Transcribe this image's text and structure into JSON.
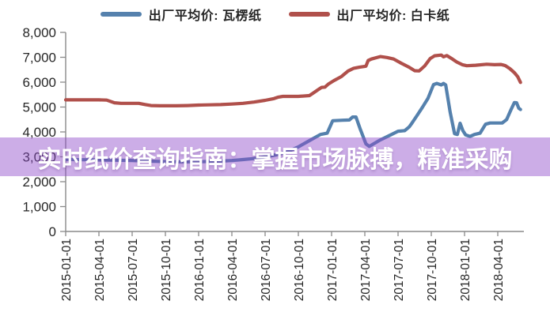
{
  "watermark": {
    "text": "实时纸价查询指南：掌握市场脉搏，精准采购",
    "band_color": "rgba(142,73,201,0.45)",
    "text_color": "#ffffff"
  },
  "chart_data": {
    "type": "line",
    "title": "",
    "xlabel": "",
    "ylabel": "",
    "grid": false,
    "legend_position": "top",
    "x_unit": "months since 2015-01",
    "ylim": [
      0,
      8000
    ],
    "axis_color": "#8a8a8a",
    "tick_label_color": "#262626",
    "yticks": [
      {
        "label": "8,000",
        "value": 8000
      },
      {
        "label": "7,000",
        "value": 7000
      },
      {
        "label": "6,000",
        "value": 6000
      },
      {
        "label": "5,000",
        "value": 5000
      },
      {
        "label": "4,000",
        "value": 4000
      },
      {
        "label": "3,000",
        "value": 3000
      },
      {
        "label": "2,000",
        "value": 2000
      },
      {
        "label": "1,000",
        "value": 1000
      },
      {
        "label": "0",
        "value": 0
      }
    ],
    "xticks": [
      {
        "label": "2015-01-01",
        "t": 0
      },
      {
        "label": "2015-04-01",
        "t": 3
      },
      {
        "label": "2015-07-01",
        "t": 6
      },
      {
        "label": "2015-10-01",
        "t": 9
      },
      {
        "label": "2016-01-01",
        "t": 12
      },
      {
        "label": "2016-04-01",
        "t": 15
      },
      {
        "label": "2016-07-01",
        "t": 18
      },
      {
        "label": "2016-10-01",
        "t": 21
      },
      {
        "label": "2017-01-01",
        "t": 24
      },
      {
        "label": "2017-04-01",
        "t": 27
      },
      {
        "label": "2017-07-01",
        "t": 30
      },
      {
        "label": "2017-10-01",
        "t": 33
      },
      {
        "label": "2018-01-01",
        "t": 36
      },
      {
        "label": "2018-04-01",
        "t": 39
      }
    ],
    "series": [
      {
        "name": "出厂平均价: 瓦楞纸",
        "color": "#5581ad",
        "points": [
          [
            0,
            2900
          ],
          [
            2,
            2880
          ],
          [
            4,
            2870
          ],
          [
            6,
            2850
          ],
          [
            8,
            2820
          ],
          [
            10,
            2800
          ],
          [
            12,
            2800
          ],
          [
            14,
            2830
          ],
          [
            15,
            2850
          ],
          [
            16,
            2890
          ],
          [
            17,
            2930
          ],
          [
            18,
            3000
          ],
          [
            19,
            3080
          ],
          [
            20,
            3200
          ],
          [
            21,
            3400
          ],
          [
            22,
            3650
          ],
          [
            23,
            3900
          ],
          [
            23.6,
            3950
          ],
          [
            24.1,
            4450
          ],
          [
            25,
            4470
          ],
          [
            25.6,
            4480
          ],
          [
            25.9,
            4600
          ],
          [
            26.2,
            4600
          ],
          [
            26.6,
            4100
          ],
          [
            27.1,
            3520
          ],
          [
            27.4,
            3420
          ],
          [
            27.9,
            3550
          ],
          [
            28.4,
            3680
          ],
          [
            29.2,
            3850
          ],
          [
            30,
            4030
          ],
          [
            30.6,
            4050
          ],
          [
            31,
            4200
          ],
          [
            31.2,
            4320
          ],
          [
            31.7,
            4650
          ],
          [
            32.2,
            4990
          ],
          [
            32.7,
            5350
          ],
          [
            33.2,
            5900
          ],
          [
            33.5,
            5950
          ],
          [
            33.9,
            5890
          ],
          [
            34.1,
            5950
          ],
          [
            34.3,
            5890
          ],
          [
            34.7,
            4800
          ],
          [
            35.1,
            3930
          ],
          [
            35.35,
            3900
          ],
          [
            35.6,
            4350
          ],
          [
            35.85,
            4050
          ],
          [
            36.1,
            3880
          ],
          [
            36.5,
            3820
          ],
          [
            36.9,
            3900
          ],
          [
            37.4,
            3950
          ],
          [
            37.9,
            4310
          ],
          [
            38.3,
            4360
          ],
          [
            39.4,
            4360
          ],
          [
            39.8,
            4500
          ],
          [
            40.2,
            4900
          ],
          [
            40.5,
            5180
          ],
          [
            40.7,
            5170
          ],
          [
            40.9,
            4950
          ],
          [
            41.05,
            4900
          ]
        ]
      },
      {
        "name": "出厂平均价: 白卡纸",
        "color": "#b0504b",
        "points": [
          [
            0,
            5290
          ],
          [
            1.5,
            5290
          ],
          [
            3,
            5290
          ],
          [
            3.7,
            5280
          ],
          [
            4.4,
            5170
          ],
          [
            5,
            5150
          ],
          [
            6.6,
            5150
          ],
          [
            7.2,
            5100
          ],
          [
            7.7,
            5060
          ],
          [
            8.5,
            5050
          ],
          [
            10,
            5050
          ],
          [
            11,
            5060
          ],
          [
            12,
            5080
          ],
          [
            13,
            5090
          ],
          [
            14,
            5100
          ],
          [
            15,
            5120
          ],
          [
            16,
            5150
          ],
          [
            17,
            5200
          ],
          [
            18,
            5270
          ],
          [
            18.8,
            5340
          ],
          [
            19.2,
            5400
          ],
          [
            19.6,
            5430
          ],
          [
            21,
            5430
          ],
          [
            22,
            5460
          ],
          [
            22.4,
            5580
          ],
          [
            22.8,
            5700
          ],
          [
            23.1,
            5790
          ],
          [
            23.4,
            5800
          ],
          [
            23.7,
            5920
          ],
          [
            24.2,
            6060
          ],
          [
            24.9,
            6230
          ],
          [
            25.5,
            6450
          ],
          [
            26,
            6560
          ],
          [
            26.5,
            6600
          ],
          [
            27.1,
            6640
          ],
          [
            27.3,
            6870
          ],
          [
            27.6,
            6930
          ],
          [
            28.4,
            7030
          ],
          [
            29,
            6990
          ],
          [
            29.6,
            6930
          ],
          [
            30.3,
            6760
          ],
          [
            31,
            6600
          ],
          [
            31.5,
            6460
          ],
          [
            31.9,
            6450
          ],
          [
            32.4,
            6650
          ],
          [
            32.9,
            6950
          ],
          [
            33.3,
            7060
          ],
          [
            33.9,
            7090
          ],
          [
            34.1,
            7020
          ],
          [
            34.4,
            7070
          ],
          [
            34.8,
            6960
          ],
          [
            35.3,
            6810
          ],
          [
            35.8,
            6700
          ],
          [
            36.2,
            6660
          ],
          [
            37,
            6680
          ],
          [
            38,
            6720
          ],
          [
            38.7,
            6700
          ],
          [
            39.3,
            6710
          ],
          [
            39.7,
            6660
          ],
          [
            40.1,
            6540
          ],
          [
            40.5,
            6380
          ],
          [
            40.8,
            6220
          ],
          [
            41.05,
            5990
          ]
        ]
      }
    ]
  }
}
